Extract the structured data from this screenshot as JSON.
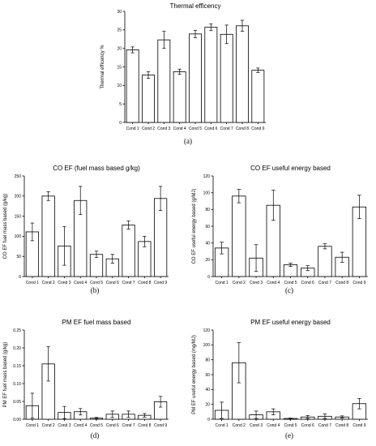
{
  "chart_data": [
    {
      "id": "a",
      "type": "bar",
      "title": "Thermal efficency",
      "ylabel": "Thermal efficency %",
      "xlabel": "",
      "panel_label": "(a)",
      "categories": [
        "Cond 1",
        "Cond 2",
        "Cond 3",
        "Cond 4",
        "Cond 5",
        "Cond 6",
        "Cond 7",
        "Cond 8",
        "Cond 9"
      ],
      "values": [
        19.6,
        12.8,
        22.3,
        13.7,
        23.9,
        25.7,
        23.8,
        26.1,
        14.1
      ],
      "errors": [
        0.8,
        0.9,
        2.3,
        0.7,
        1.0,
        0.9,
        2.5,
        1.5,
        0.6
      ],
      "ylim": [
        0,
        30
      ],
      "yticks": [
        0,
        5,
        10,
        15,
        20,
        25,
        30
      ]
    },
    {
      "id": "b",
      "type": "bar",
      "title": "CO EF (fuel mass based g/kg)",
      "ylabel": "CO EF fuel mass based (g/kg)",
      "xlabel": "",
      "panel_label": "(b)",
      "categories": [
        "Cond 1",
        "Cond 2",
        "Cond 3",
        "Cond 4",
        "Cond 5",
        "Cond 6",
        "Cond 7",
        "Cond 8",
        "Cond 9"
      ],
      "values": [
        111,
        200,
        76,
        189,
        55,
        44,
        128,
        87,
        194
      ],
      "errors": [
        22,
        11,
        48,
        35,
        8,
        11,
        10,
        13,
        30
      ],
      "ylim": [
        0,
        250
      ],
      "yticks": [
        0,
        50,
        100,
        150,
        200,
        250
      ]
    },
    {
      "id": "c",
      "type": "bar",
      "title": "CO EF useful energy based",
      "ylabel": "CO EF useful energy based (g/MJ)",
      "xlabel": "",
      "panel_label": "(c)",
      "categories": [
        "Cond 1",
        "Cond 2",
        "Cond 3",
        "Cond 4",
        "Cond 5",
        "Cond 6",
        "Cond 7",
        "Cond 8",
        "Cond 9"
      ],
      "values": [
        34,
        96,
        22,
        85,
        14,
        10,
        36,
        23,
        83
      ],
      "errors": [
        7,
        8,
        16,
        18,
        2,
        3,
        3,
        6,
        14
      ],
      "ylim": [
        0,
        120
      ],
      "yticks": [
        0,
        20,
        40,
        60,
        80,
        100,
        120
      ]
    },
    {
      "id": "d",
      "type": "bar",
      "title": "PM EF fuel mass based",
      "ylabel": "PM EF fuel mass based (g/kg)",
      "xlabel": "",
      "panel_label": "(d)",
      "categories": [
        "Cond 1",
        "Cond 2",
        "Cond 3",
        "Cond 4",
        "Cond 5",
        "Cond 6",
        "Cond 7",
        "Cond 8",
        "Cond 9"
      ],
      "values": [
        0.038,
        0.155,
        0.019,
        0.021,
        0.003,
        0.014,
        0.014,
        0.011,
        0.049
      ],
      "errors": [
        0.035,
        0.048,
        0.017,
        0.009,
        0.002,
        0.009,
        0.009,
        0.005,
        0.015
      ],
      "ylim": [
        0,
        0.25
      ],
      "yticks": [
        0.0,
        0.05,
        0.1,
        0.15,
        0.2,
        0.25
      ]
    },
    {
      "id": "e",
      "type": "bar",
      "title": "PM EF useful energy based",
      "ylabel": "PM EF useful energy based (mg/MJ)",
      "xlabel": "",
      "panel_label": "(e)",
      "categories": [
        "Cond 1",
        "Cond 2",
        "Cond 3",
        "Cond 4",
        "Cond 5",
        "Cond 6",
        "Cond 7",
        "Cond 8",
        "Cond 9"
      ],
      "values": [
        12,
        76,
        6,
        10,
        1,
        3,
        4,
        3,
        21
      ],
      "errors": [
        11,
        27,
        5,
        4,
        0.6,
        2,
        3,
        1.5,
        7
      ],
      "ylim": [
        0,
        120
      ],
      "yticks": [
        0,
        20,
        40,
        60,
        80,
        100,
        120
      ]
    }
  ]
}
